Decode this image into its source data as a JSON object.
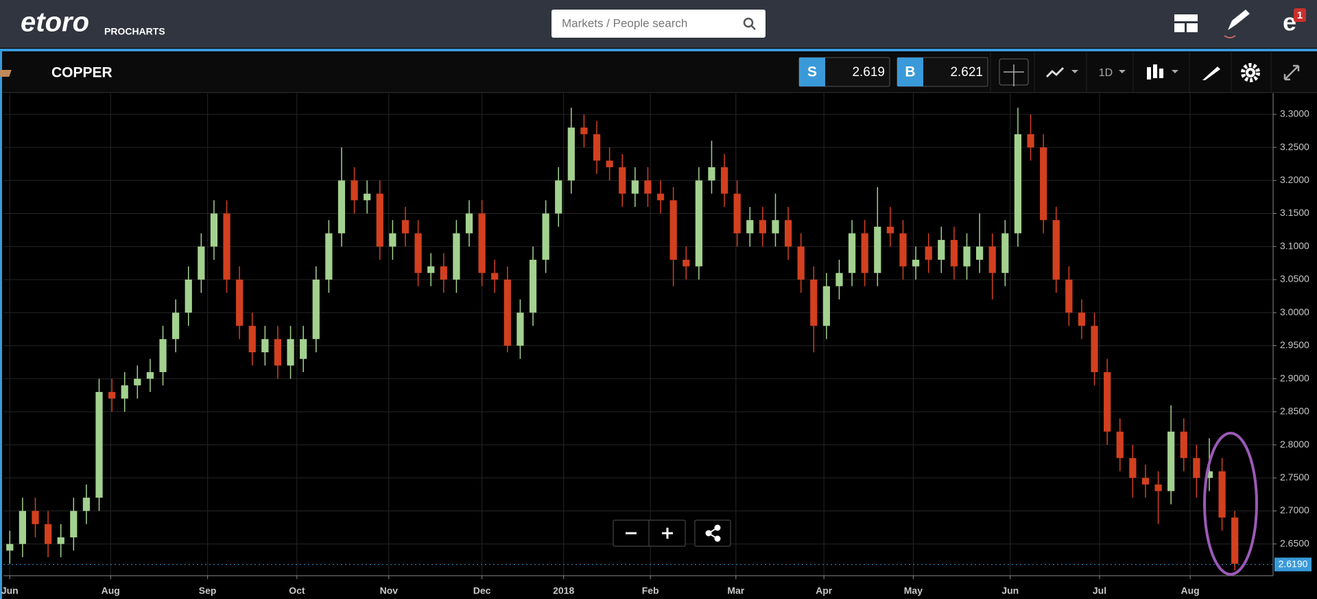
{
  "header": {
    "logo": "etoro",
    "product": "PROCHARTS",
    "search_placeholder": "Markets / People search",
    "notifications": 1
  },
  "toolbar": {
    "instrument": "COPPER",
    "sell_label": "S",
    "sell_price": 2.619,
    "buy_label": "B",
    "buy_price": 2.621,
    "interval": "1D"
  },
  "chart_data": {
    "type": "candlestick",
    "open": [
      2.64,
      2.65,
      2.7,
      2.68,
      2.65,
      2.66,
      2.7,
      2.72,
      2.88,
      2.87,
      2.89,
      2.9,
      2.91,
      2.96,
      3.0,
      3.05,
      3.1,
      3.15,
      3.05,
      2.98,
      2.94,
      2.96,
      2.92,
      2.93,
      2.96,
      3.05,
      3.12,
      3.2,
      3.17,
      3.18,
      3.1,
      3.14,
      3.12,
      3.06,
      3.07,
      3.05,
      3.12,
      3.15,
      3.06,
      3.05,
      2.95,
      3.0,
      3.08,
      3.15,
      3.2,
      3.28,
      3.27,
      3.23,
      3.22,
      3.18,
      3.2,
      3.18,
      3.17,
      3.08,
      3.07,
      3.2,
      3.22,
      3.18,
      3.12,
      3.14,
      3.12,
      3.14,
      3.1,
      3.05,
      2.98,
      3.04,
      3.06,
      3.12,
      3.06,
      3.13,
      3.12,
      3.07,
      3.1,
      3.08,
      3.11,
      3.07,
      3.08,
      3.1,
      3.06,
      3.12,
      3.27,
      3.25,
      3.14,
      3.05,
      3.0,
      2.98,
      2.91,
      2.82,
      2.78,
      2.75,
      2.74,
      2.73,
      2.82,
      2.78,
      2.75,
      2.76,
      2.69
    ],
    "high": [
      2.67,
      2.72,
      2.72,
      2.7,
      2.68,
      2.72,
      2.74,
      2.9,
      2.9,
      2.91,
      2.92,
      2.93,
      2.98,
      3.02,
      3.07,
      3.12,
      3.17,
      3.17,
      3.07,
      3.0,
      2.98,
      2.98,
      2.98,
      2.98,
      3.07,
      3.14,
      3.25,
      3.22,
      3.2,
      3.2,
      3.14,
      3.16,
      3.14,
      3.09,
      3.09,
      3.14,
      3.17,
      3.17,
      3.08,
      3.07,
      3.02,
      3.1,
      3.17,
      3.22,
      3.31,
      3.3,
      3.29,
      3.25,
      3.24,
      3.22,
      3.22,
      3.2,
      3.19,
      3.1,
      3.22,
      3.26,
      3.24,
      3.2,
      3.16,
      3.16,
      3.18,
      3.16,
      3.12,
      3.07,
      3.06,
      3.08,
      3.14,
      3.14,
      3.19,
      3.16,
      3.14,
      3.1,
      3.12,
      3.13,
      3.13,
      3.12,
      3.15,
      3.12,
      3.14,
      3.31,
      3.3,
      3.27,
      3.16,
      3.07,
      3.02,
      3.0,
      2.93,
      2.84,
      2.8,
      2.77,
      2.76,
      2.86,
      2.84,
      2.8,
      2.81,
      2.78,
      2.7
    ],
    "low": [
      2.62,
      2.63,
      2.66,
      2.63,
      2.63,
      2.64,
      2.68,
      2.7,
      2.85,
      2.85,
      2.87,
      2.88,
      2.89,
      2.94,
      2.98,
      3.03,
      3.08,
      3.03,
      2.96,
      2.92,
      2.92,
      2.9,
      2.9,
      2.91,
      2.94,
      3.03,
      3.1,
      3.15,
      3.15,
      3.08,
      3.08,
      3.1,
      3.04,
      3.04,
      3.03,
      3.03,
      3.1,
      3.04,
      3.03,
      2.94,
      2.93,
      2.98,
      3.06,
      3.13,
      3.18,
      3.25,
      3.21,
      3.2,
      3.16,
      3.16,
      3.16,
      3.15,
      3.04,
      3.05,
      3.05,
      3.18,
      3.16,
      3.1,
      3.1,
      3.1,
      3.1,
      3.08,
      3.03,
      2.94,
      2.96,
      3.02,
      3.04,
      3.04,
      3.04,
      3.1,
      3.05,
      3.05,
      3.06,
      3.06,
      3.05,
      3.05,
      3.06,
      3.02,
      3.04,
      3.1,
      3.23,
      3.12,
      3.03,
      2.98,
      2.96,
      2.89,
      2.8,
      2.76,
      2.72,
      2.72,
      2.68,
      2.71,
      2.76,
      2.72,
      2.73,
      2.67,
      2.61
    ],
    "close": [
      2.65,
      2.7,
      2.68,
      2.65,
      2.66,
      2.7,
      2.72,
      2.88,
      2.87,
      2.89,
      2.9,
      2.91,
      2.96,
      3.0,
      3.05,
      3.1,
      3.15,
      3.05,
      2.98,
      2.94,
      2.96,
      2.92,
      2.96,
      2.96,
      3.05,
      3.12,
      3.2,
      3.17,
      3.18,
      3.1,
      3.12,
      3.12,
      3.06,
      3.07,
      3.05,
      3.12,
      3.15,
      3.06,
      3.05,
      2.95,
      3.0,
      3.08,
      3.15,
      3.2,
      3.28,
      3.27,
      3.23,
      3.22,
      3.18,
      3.2,
      3.18,
      3.17,
      3.08,
      3.07,
      3.2,
      3.22,
      3.18,
      3.12,
      3.14,
      3.12,
      3.14,
      3.1,
      3.05,
      2.98,
      3.04,
      3.06,
      3.12,
      3.06,
      3.13,
      3.12,
      3.07,
      3.08,
      3.08,
      3.11,
      3.07,
      3.1,
      3.1,
      3.06,
      3.12,
      3.27,
      3.25,
      3.14,
      3.05,
      3.0,
      2.98,
      2.91,
      2.82,
      2.78,
      2.75,
      2.74,
      2.73,
      2.82,
      2.78,
      2.75,
      2.76,
      2.69,
      2.62
    ],
    "up_color": "#a3d18f",
    "down_color": "#d2401f",
    "xlim": [
      -0.5,
      99
    ],
    "xticks": [
      {
        "value": 0,
        "label": "Jun"
      },
      {
        "value": 7.9,
        "label": "Aug"
      },
      {
        "value": 15.5,
        "label": "Sep"
      },
      {
        "value": 22.5,
        "label": "Oct"
      },
      {
        "value": 29.7,
        "label": "Nov"
      },
      {
        "value": 37,
        "label": "Dec"
      },
      {
        "value": 43.4,
        "label": "2018"
      },
      {
        "value": 50.2,
        "label": "Feb"
      },
      {
        "value": 56.9,
        "label": "Mar"
      },
      {
        "value": 63.8,
        "label": "Apr"
      },
      {
        "value": 70.8,
        "label": "May"
      },
      {
        "value": 78.4,
        "label": "Jun"
      },
      {
        "value": 85.4,
        "label": "Jul"
      },
      {
        "value": 92.5,
        "label": "Aug"
      }
    ],
    "ylim": [
      2.602,
      3.332
    ],
    "yticks": [
      {
        "value": 2.65,
        "label": "2.6500"
      },
      {
        "value": 2.7,
        "label": "2.7000"
      },
      {
        "value": 2.75,
        "label": "2.7500"
      },
      {
        "value": 2.8,
        "label": "2.8000"
      },
      {
        "value": 2.85,
        "label": "2.8500"
      },
      {
        "value": 2.9,
        "label": "2.9000"
      },
      {
        "value": 2.95,
        "label": "2.9500"
      },
      {
        "value": 3.0,
        "label": "3.0000"
      },
      {
        "value": 3.05,
        "label": "3.0500"
      },
      {
        "value": 3.1,
        "label": "3.1000"
      },
      {
        "value": 3.15,
        "label": "3.1500"
      },
      {
        "value": 3.2,
        "label": "3.2000"
      },
      {
        "value": 3.25,
        "label": "3.2500"
      },
      {
        "value": 3.3,
        "label": "3.3000"
      }
    ],
    "grid": true,
    "last_price": {
      "value": 2.619,
      "label": "2.6190"
    }
  }
}
